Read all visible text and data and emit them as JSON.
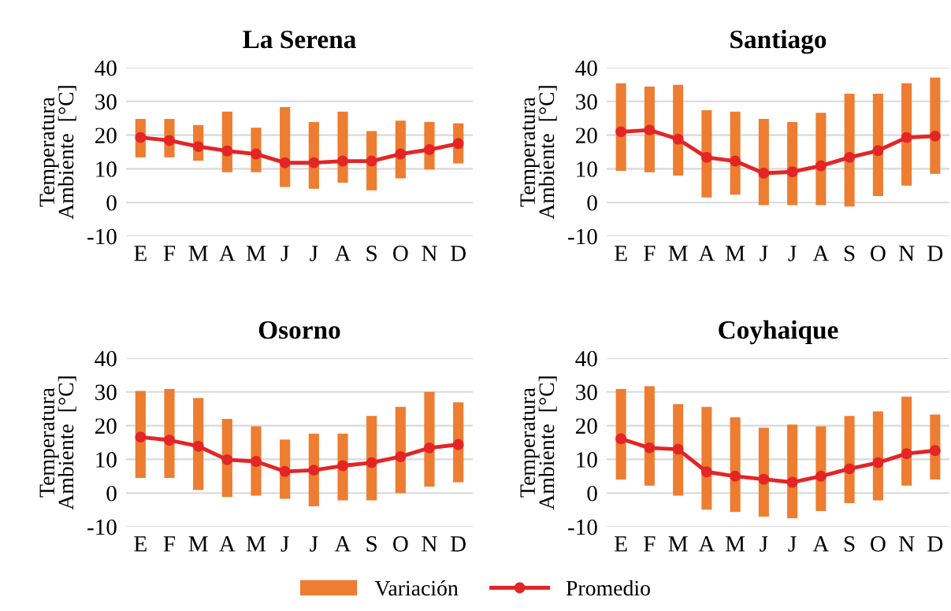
{
  "chart_data": [
    {
      "type": "bar",
      "title": "La Serena",
      "ylabel": "Temperatura\nAmbiente  [°C]",
      "categories": [
        "E",
        "F",
        "M",
        "A",
        "M",
        "J",
        "J",
        "A",
        "S",
        "O",
        "N",
        "D"
      ],
      "ylim": [
        -10,
        40
      ],
      "yticks": [
        -10,
        0,
        10,
        20,
        30,
        40
      ],
      "grid": "y",
      "legend": "bottom",
      "series": [
        {
          "name": "Variación",
          "color": "#ed7d31",
          "base": [
            13.4,
            13.4,
            12.4,
            9.0,
            9.0,
            4.6,
            4.1,
            5.9,
            3.6,
            7.2,
            9.8,
            11.6
          ],
          "values": [
            11.4,
            11.4,
            10.6,
            18.0,
            13.2,
            23.7,
            19.8,
            21.1,
            17.6,
            17.1,
            14.1,
            11.9
          ]
        },
        {
          "name": "Promedio",
          "type": "line",
          "color": "#e32526",
          "marker": "circle",
          "values": [
            19.3,
            18.4,
            16.6,
            15.3,
            14.4,
            11.8,
            11.8,
            12.3,
            12.3,
            14.4,
            15.7,
            17.5
          ]
        }
      ]
    },
    {
      "type": "bar",
      "title": "Santiago",
      "ylabel": "Temperatura\nAmbiente  [°C]",
      "categories": [
        "E",
        "F",
        "M",
        "A",
        "M",
        "J",
        "J",
        "A",
        "S",
        "O",
        "N",
        "D"
      ],
      "ylim": [
        -10,
        40
      ],
      "yticks": [
        -10,
        0,
        10,
        20,
        30,
        40
      ],
      "grid": "y",
      "series": [
        {
          "color": "#ed7d31",
          "base": [
            9.4,
            9.0,
            8.0,
            1.5,
            2.3,
            -0.8,
            -0.8,
            -0.8,
            -1.2,
            1.9,
            5.0,
            8.5
          ],
          "values": [
            26.0,
            25.4,
            26.9,
            25.9,
            24.7,
            25.6,
            24.7,
            27.4,
            33.5,
            30.4,
            30.4,
            28.6
          ]
        },
        {
          "type": "line",
          "color": "#e32526",
          "marker": "circle",
          "values": [
            21.0,
            21.5,
            18.8,
            13.4,
            12.3,
            8.7,
            9.1,
            10.9,
            13.4,
            15.4,
            19.3,
            19.7
          ]
        }
      ]
    },
    {
      "type": "bar",
      "title": "Osorno",
      "ylabel": "Temperatura\nAmbiente  [°C]",
      "categories": [
        "E",
        "F",
        "M",
        "A",
        "M",
        "J",
        "J",
        "A",
        "S",
        "O",
        "N",
        "D"
      ],
      "ylim": [
        -10,
        40
      ],
      "yticks": [
        -10,
        0,
        10,
        20,
        30,
        40
      ],
      "grid": "y",
      "series": [
        {
          "color": "#ed7d31",
          "base": [
            4.5,
            4.5,
            0.9,
            -1.2,
            -0.8,
            -1.7,
            -3.9,
            -2.2,
            -2.2,
            0.0,
            1.9,
            3.2
          ],
          "values": [
            25.8,
            26.4,
            27.3,
            23.2,
            20.6,
            17.6,
            21.5,
            19.8,
            25.1,
            25.6,
            28.1,
            23.7
          ]
        },
        {
          "type": "line",
          "color": "#e32526",
          "marker": "circle",
          "values": [
            16.6,
            15.7,
            13.9,
            9.9,
            9.4,
            6.4,
            6.8,
            8.1,
            9.0,
            10.8,
            13.4,
            14.4
          ]
        }
      ]
    },
    {
      "type": "bar",
      "title": "Coyhaique",
      "ylabel": "Temperatura\nAmbiente  [°C]",
      "categories": [
        "E",
        "F",
        "M",
        "A",
        "M",
        "J",
        "J",
        "A",
        "S",
        "O",
        "N",
        "D"
      ],
      "ylim": [
        -10,
        40
      ],
      "yticks": [
        -10,
        0,
        10,
        20,
        30,
        40
      ],
      "grid": "y",
      "series": [
        {
          "color": "#ed7d31",
          "base": [
            4.0,
            2.2,
            -0.8,
            -4.9,
            -5.6,
            -7.0,
            -7.5,
            -5.3,
            -3.0,
            -2.2,
            2.2,
            4.0
          ],
          "values": [
            26.9,
            29.5,
            27.2,
            30.5,
            28.1,
            26.4,
            27.8,
            25.1,
            25.9,
            26.4,
            26.4,
            19.3
          ]
        },
        {
          "type": "line",
          "color": "#e32526",
          "marker": "circle",
          "values": [
            16.1,
            13.4,
            13.0,
            6.3,
            5.0,
            4.1,
            3.2,
            5.0,
            7.2,
            9.0,
            11.7,
            12.6
          ]
        }
      ]
    }
  ]
}
